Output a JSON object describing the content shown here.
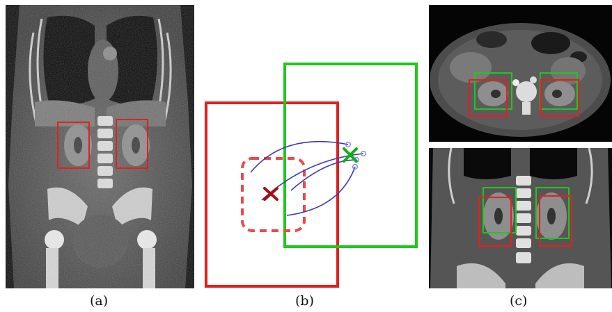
{
  "captions": {
    "a": "(a)",
    "b": "(b)",
    "c": "(c)"
  },
  "colors": {
    "box_red": "#e41e1e",
    "box_green": "#1ec81e",
    "box_red_dashed": "#e84a4a",
    "marker_dark_red": "#a01010",
    "marker_green": "#10b010",
    "arrow_blue": "#3a3ab8",
    "ring_light_blue": "#7a8ae8",
    "ct_background": "#000000"
  },
  "icons": {
    "cross_marker": "x-mark-icon",
    "target_ring": "circle-outline-icon"
  }
}
